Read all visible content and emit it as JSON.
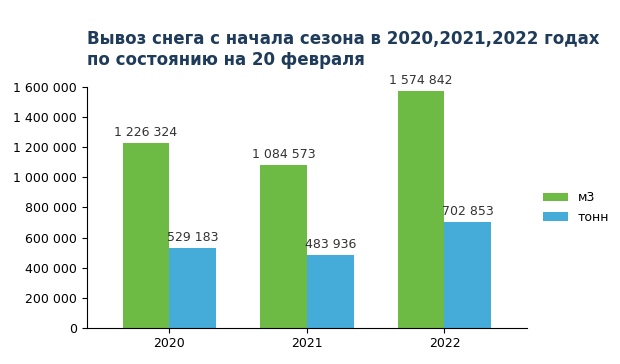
{
  "chart_data": {
    "type": "bar",
    "title": "Вывоз снега с начала сезона в 2020,2021,2022 годах\nпо состоянию на 20 февраля",
    "categories": [
      "2020",
      "2021",
      "2022"
    ],
    "series": [
      {
        "name": "м3",
        "color": "#6dbb45",
        "values": [
          1226324,
          1084573,
          1574842
        ],
        "value_labels": [
          "1 226 324",
          "1 084 573",
          "1 574 842"
        ]
      },
      {
        "name": "тонн",
        "color": "#45acd9",
        "values": [
          529183,
          483936,
          702853
        ],
        "value_labels": [
          "529 183",
          "483 936",
          "702 853"
        ]
      }
    ],
    "ylim": [
      0,
      1600000
    ],
    "yticks": [
      0,
      {
        "value": 200000,
        "label": "200 000"
      },
      {
        "value": 400000,
        "label": "400 000"
      },
      {
        "value": 600000,
        "label": "600 000"
      },
      {
        "value": 800000,
        "label": "800 000"
      },
      {
        "value": 1000000,
        "label": "1 000 000"
      },
      {
        "value": 1200000,
        "label": "1 200 000"
      },
      {
        "value": 1400000,
        "label": "1 400 000"
      },
      {
        "value": 1600000,
        "label": "1 600 000"
      }
    ],
    "grid": false,
    "legend": "right",
    "data_labels": true
  }
}
